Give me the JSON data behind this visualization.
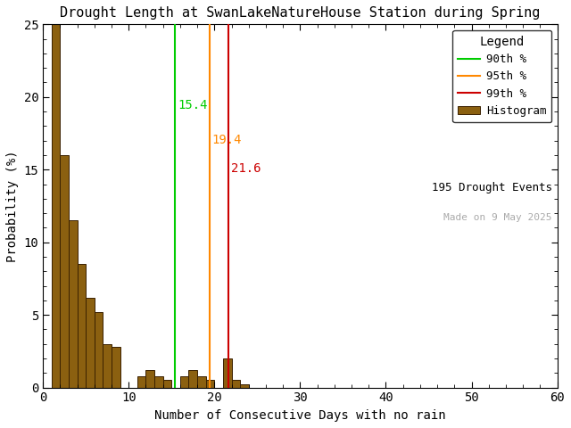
{
  "title": "Drought Length at SwanLakeNatureHouse Station during Spring",
  "xlabel": "Number of Consecutive Days with no rain",
  "ylabel": "Probability (%)",
  "xlim": [
    0,
    60
  ],
  "ylim": [
    0,
    25
  ],
  "bar_color": "#8B6010",
  "bar_edgecolor": "#3a2000",
  "background_color": "#ffffff",
  "bin_left_edges": [
    1,
    2,
    3,
    4,
    5,
    6,
    7,
    8,
    9,
    11,
    12,
    13,
    14,
    16,
    17,
    18,
    19,
    21,
    22,
    23
  ],
  "bin_values": [
    25.0,
    16.0,
    11.5,
    8.5,
    6.2,
    5.2,
    3.0,
    2.8,
    0.0,
    0.8,
    1.2,
    0.8,
    0.5,
    0.8,
    1.2,
    0.8,
    0.5,
    2.0,
    0.5,
    0.2
  ],
  "percentile_90": 15.4,
  "percentile_95": 19.4,
  "percentile_99": 21.6,
  "percentile_90_color": "#00cc00",
  "percentile_95_color": "#ff8800",
  "percentile_99_color": "#cc0000",
  "n_events": 195,
  "watermark": "Made on 9 May 2025",
  "watermark_color": "#aaaaaa",
  "legend_title": "Legend",
  "yticks": [
    0,
    5,
    10,
    15,
    20,
    25
  ],
  "xticks": [
    0,
    10,
    20,
    30,
    40,
    50,
    60
  ],
  "font_family": "monospace",
  "title_fontsize": 11,
  "label_fontsize": 10,
  "tick_fontsize": 10
}
